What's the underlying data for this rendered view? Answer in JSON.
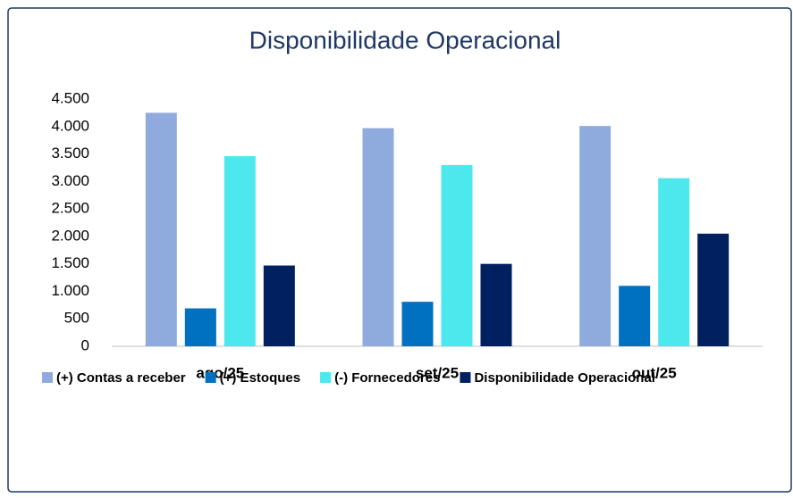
{
  "chart_data": {
    "type": "bar",
    "title": "Disponibilidade Operacional",
    "categories": [
      "ago/25",
      "set/25",
      "out/25"
    ],
    "series": [
      {
        "name": "(+) Contas a receber",
        "color": "#8faadc",
        "values": [
          4250,
          3970,
          4010
        ]
      },
      {
        "name": "(+) Estoques",
        "color": "#0070c0",
        "values": [
          690,
          810,
          1100
        ]
      },
      {
        "name": "(-) Fornecedores",
        "color": "#4de8ed",
        "values": [
          3460,
          3300,
          3060
        ]
      },
      {
        "name": "Disponibilidade Operacional",
        "color": "#002060",
        "values": [
          1470,
          1500,
          2050
        ]
      }
    ],
    "ylim": [
      0,
      4500
    ],
    "yticks": [
      0,
      500,
      {
        "value": 1000,
        "label": "1.000"
      },
      {
        "value": 1500,
        "label": "1.500"
      },
      {
        "value": 2000,
        "label": "2.000"
      },
      {
        "value": 2500,
        "label": "2.500"
      },
      {
        "value": 3000,
        "label": "3.000"
      },
      {
        "value": 3500,
        "label": "3.500"
      },
      {
        "value": 4000,
        "label": "4.000"
      },
      {
        "value": 4500,
        "label": "4.500"
      }
    ],
    "legend": "bottom",
    "grid": false
  }
}
